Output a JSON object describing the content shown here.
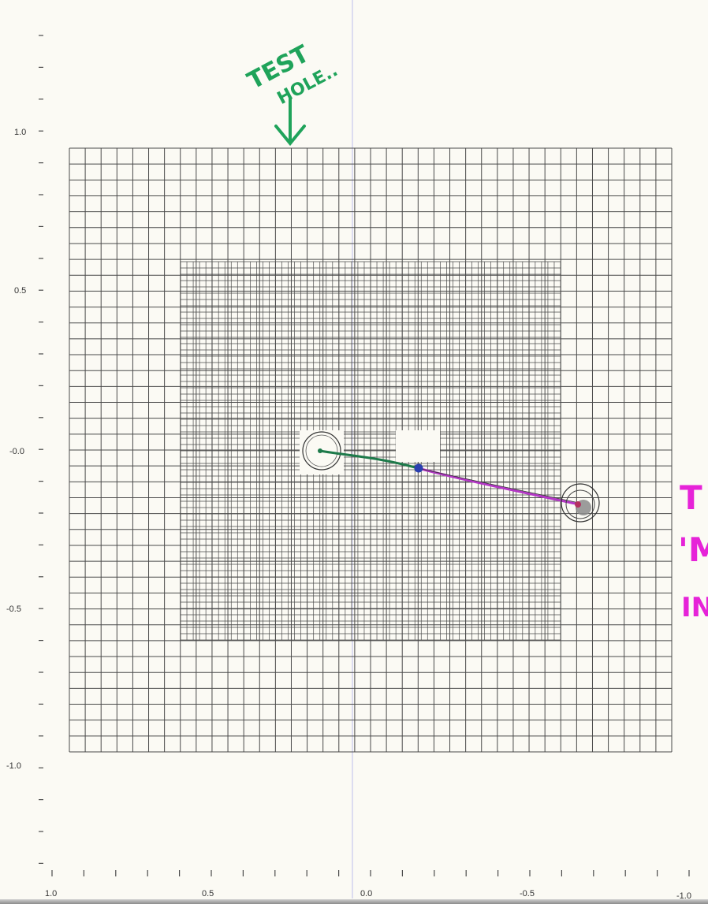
{
  "annotations": {
    "test_hole": [
      "TEST",
      "HOLE.."
    ],
    "right_note": [
      "T",
      "'M",
      "IN"
    ]
  },
  "axes": {
    "y_ticks": [
      "1.0",
      "0.5",
      "-0.0",
      "-0.5",
      "-1.0"
    ],
    "x_ticks": [
      "1.0",
      "0.5",
      "0.0",
      "-0.5",
      "-1.0"
    ]
  },
  "colors": {
    "grid": "#4a4a4a",
    "track_green": "#1d7a4a",
    "track_magenta": "#b437c6",
    "annotation_green": "#1fa35a",
    "annotation_magenta": "#e623d8",
    "vertex": "#2a3fb0"
  }
}
